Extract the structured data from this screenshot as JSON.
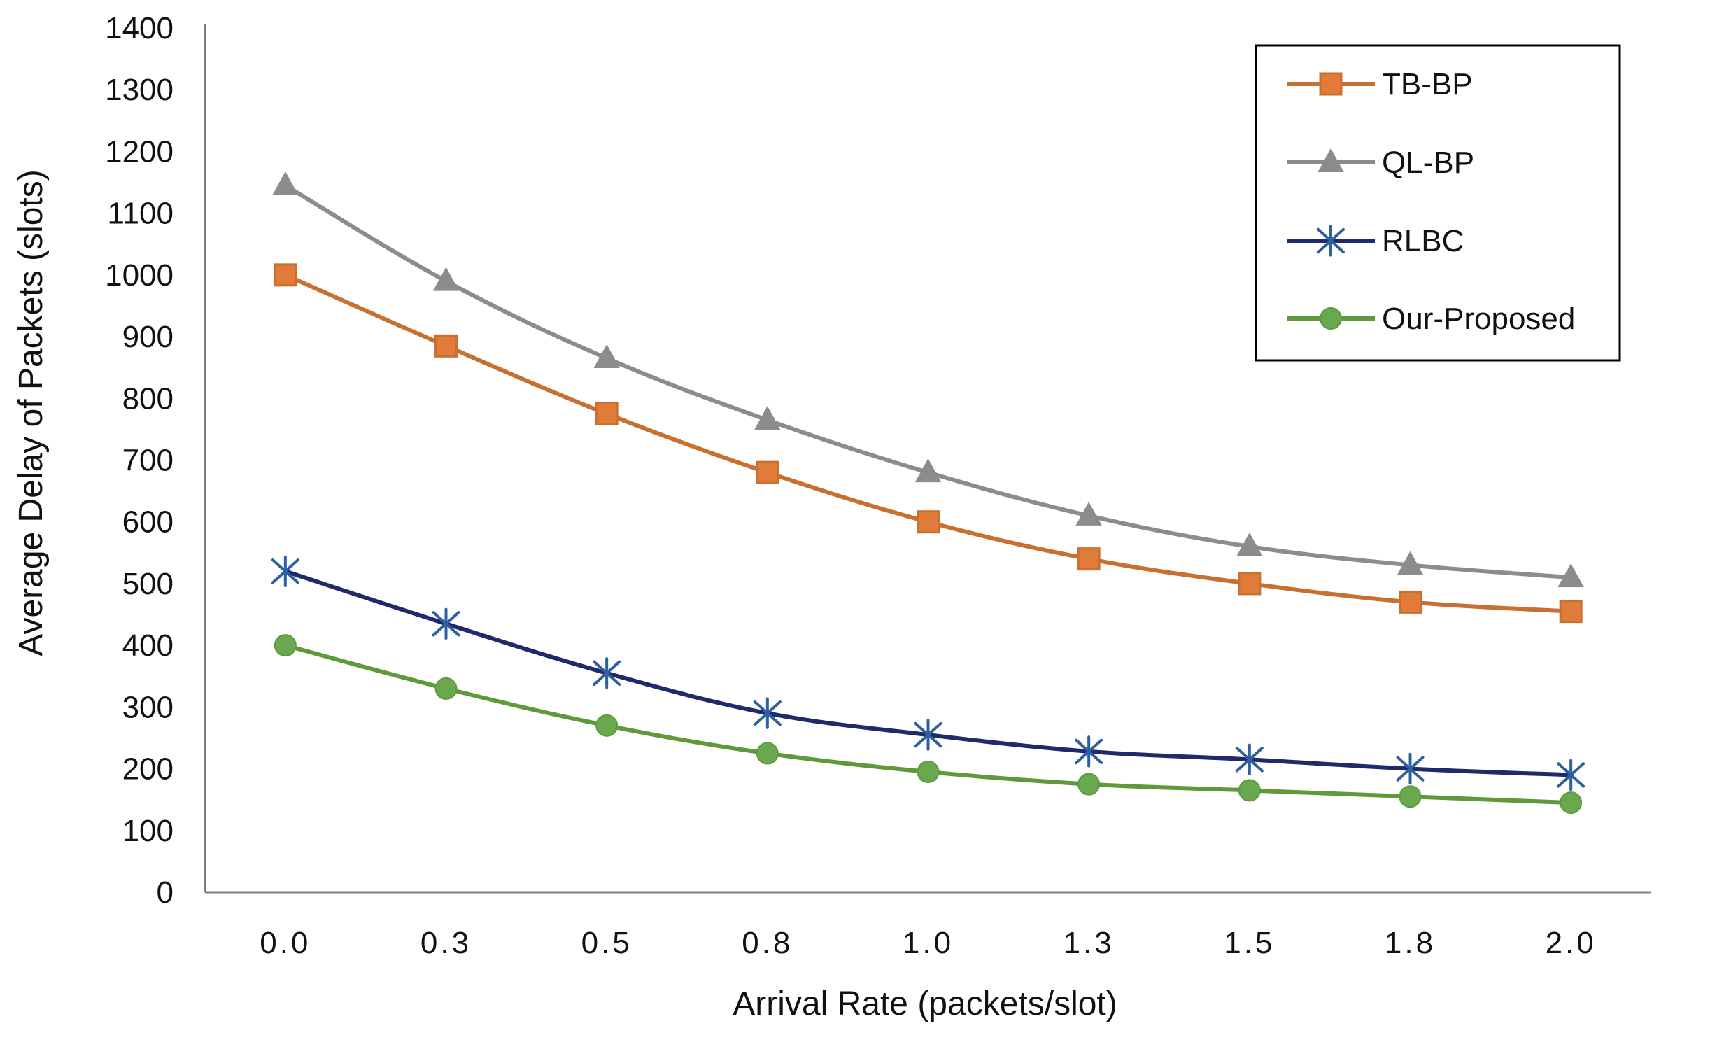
{
  "chart_data": {
    "type": "line",
    "title": "",
    "xlabel": "Arrival Rate (packets/slot)",
    "ylabel": "Average Delay of Packets (slots)",
    "categories": [
      "0.0",
      "0.3",
      "0.5",
      "0.8",
      "1.0",
      "1.3",
      "1.5",
      "1.8",
      "2.0"
    ],
    "ylim": [
      0,
      1400
    ],
    "yticks": [
      0,
      100,
      200,
      300,
      400,
      500,
      600,
      700,
      800,
      900,
      1000,
      1100,
      1200,
      1300,
      1400
    ],
    "ytick_labels": [
      "0",
      "100",
      "200",
      "300",
      "400",
      "500",
      "600",
      "700",
      "800",
      "900",
      "1000",
      "1100",
      "1200",
      "1300",
      "1400"
    ],
    "grid": false,
    "legend_position": "top-right",
    "series": [
      {
        "name": "TB-BP",
        "marker": "square",
        "color": "#c8702f",
        "marker_fill": "#e07b39",
        "values": [
          1000,
          885,
          775,
          680,
          600,
          540,
          500,
          470,
          455
        ]
      },
      {
        "name": "QL-BP",
        "marker": "triangle",
        "color": "#8c8c8c",
        "marker_fill": "#8c8c8c",
        "values": [
          1145,
          990,
          865,
          765,
          680,
          610,
          560,
          530,
          510
        ]
      },
      {
        "name": "RLBC",
        "marker": "asterisk",
        "color": "#1f2a6b",
        "marker_fill": "#2e5f9e",
        "values": [
          520,
          435,
          355,
          290,
          255,
          228,
          215,
          200,
          190
        ]
      },
      {
        "name": "Our-Proposed",
        "marker": "circle",
        "color": "#5e9a3a",
        "marker_fill": "#6aa84f",
        "values": [
          400,
          330,
          270,
          225,
          195,
          175,
          165,
          155,
          145
        ]
      }
    ]
  }
}
